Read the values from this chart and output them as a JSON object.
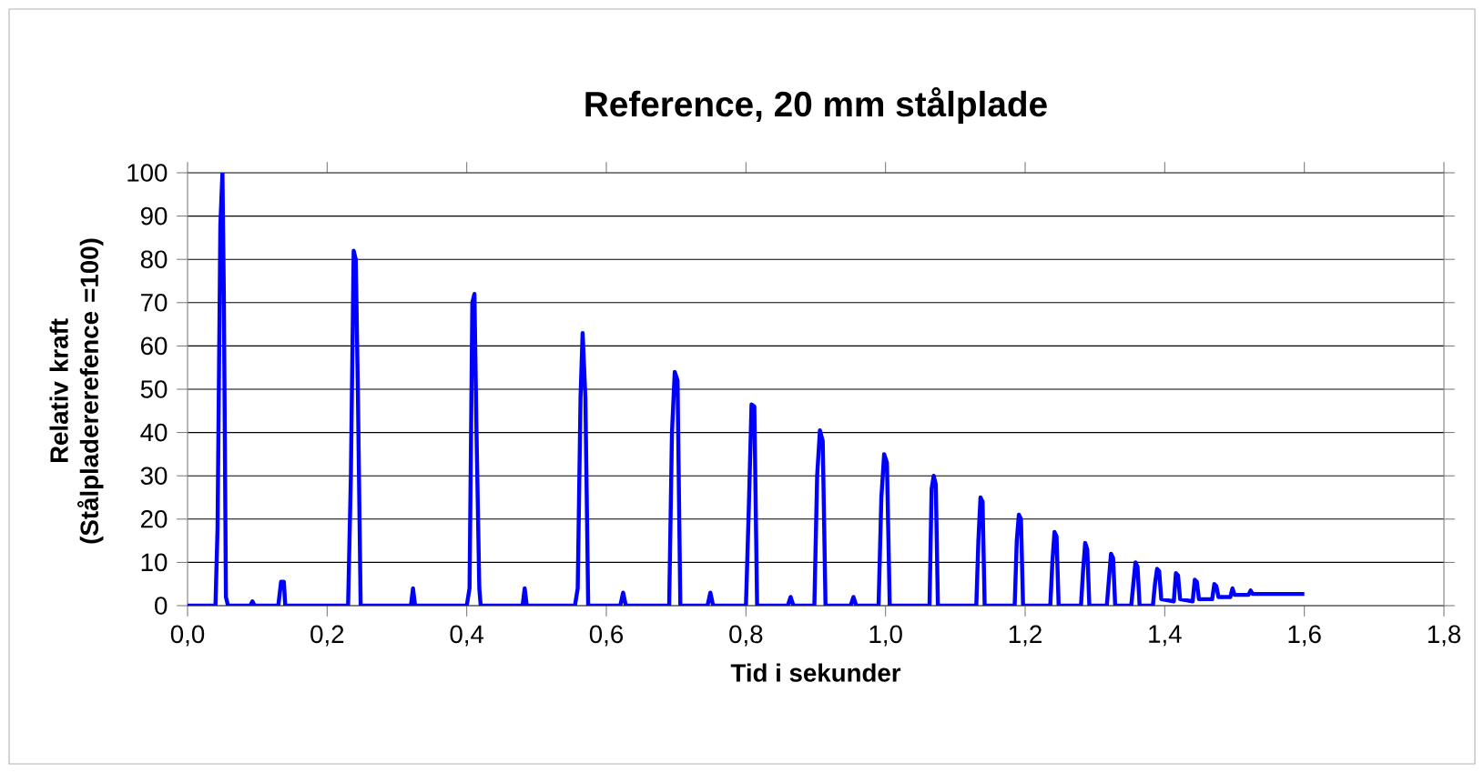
{
  "chart_data": {
    "type": "line",
    "title": "Reference, 20 mm stålplade",
    "xlabel": "Tid i sekunder",
    "ylabel": "Relativ kraft (Stålpladererefence =100)",
    "x": [
      0,
      0.04,
      0.043,
      0.047,
      0.05,
      0.052,
      0.055,
      0.058,
      0.09,
      0.093,
      0.096,
      0.13,
      0.134,
      0.138,
      0.14,
      0.23,
      0.234,
      0.238,
      0.241,
      0.244,
      0.248,
      0.27,
      0.32,
      0.323,
      0.326,
      0.4,
      0.404,
      0.408,
      0.411,
      0.414,
      0.418,
      0.42,
      0.48,
      0.483,
      0.486,
      0.555,
      0.559,
      0.563,
      0.566,
      0.57,
      0.574,
      0.62,
      0.624,
      0.628,
      0.69,
      0.694,
      0.698,
      0.702,
      0.706,
      0.745,
      0.749,
      0.753,
      0.8,
      0.804,
      0.808,
      0.812,
      0.816,
      0.86,
      0.864,
      0.868,
      0.898,
      0.902,
      0.906,
      0.91,
      0.914,
      0.95,
      0.954,
      0.958,
      0.99,
      0.994,
      0.998,
      1.002,
      1.006,
      1.063,
      1.066,
      1.069,
      1.072,
      1.075,
      1.13,
      1.133,
      1.136,
      1.139,
      1.142,
      1.185,
      1.188,
      1.191,
      1.194,
      1.197,
      1.236,
      1.239,
      1.242,
      1.245,
      1.248,
      1.28,
      1.283,
      1.286,
      1.289,
      1.292,
      1.317,
      1.32,
      1.323,
      1.326,
      1.329,
      1.352,
      1.355,
      1.358,
      1.361,
      1.364,
      1.383,
      1.386,
      1.389,
      1.392,
      1.395,
      1.413,
      1.416,
      1.419,
      1.422,
      1.44,
      1.443,
      1.446,
      1.449,
      1.468,
      1.471,
      1.474,
      1.477,
      1.494,
      1.497,
      1.5,
      1.52,
      1.523,
      1.526,
      1.54,
      1.6
    ],
    "values": [
      0,
      0,
      18,
      88,
      100,
      72,
      2,
      0,
      0,
      1,
      0,
      0,
      5.5,
      5.5,
      0,
      0,
      30,
      82,
      80,
      50,
      0,
      0,
      0,
      4,
      0,
      0,
      4,
      70,
      72,
      40,
      4,
      0,
      0,
      4,
      0,
      0,
      4,
      48,
      63,
      48,
      0,
      0,
      3,
      0,
      0,
      40,
      54,
      52,
      0,
      0,
      3,
      0,
      0,
      22,
      46.5,
      46,
      0,
      0,
      2,
      0,
      0,
      30,
      40.5,
      38,
      0,
      0,
      2,
      0,
      0,
      25,
      35,
      33,
      0,
      0,
      27,
      30,
      28,
      0,
      0,
      15,
      25,
      24,
      0,
      0,
      15,
      21,
      20,
      0,
      0,
      10,
      17,
      16,
      0,
      0,
      8,
      14.5,
      13,
      0,
      0,
      6,
      12,
      11,
      0,
      0,
      5,
      10,
      9,
      0,
      0,
      5,
      8.5,
      8,
      1.5,
      1,
      7.5,
      7,
      1.5,
      1,
      6,
      5.5,
      1.5,
      1.5,
      5,
      4.5,
      2,
      2,
      4,
      2.5,
      2.5,
      3.5,
      2.7,
      2.7,
      2.7
    ],
    "color": "#0000ff",
    "xlim": [
      0,
      1.8
    ],
    "ylim": [
      0,
      100
    ],
    "xticks": [
      {
        "value": 0,
        "label": "0,0"
      },
      {
        "value": 0.2,
        "label": "0,2"
      },
      {
        "value": 0.4,
        "label": "0,4"
      },
      {
        "value": 0.6,
        "label": "0,6"
      },
      {
        "value": 0.8,
        "label": "0,8"
      },
      {
        "value": 1.0,
        "label": "1,0"
      },
      {
        "value": 1.2,
        "label": "1,2"
      },
      {
        "value": 1.4,
        "label": "1,4"
      },
      {
        "value": 1.6,
        "label": "1,6"
      },
      {
        "value": 1.8,
        "label": "1,8"
      }
    ],
    "yticks": [
      0,
      10,
      20,
      30,
      40,
      50,
      60,
      70,
      80,
      90,
      100
    ],
    "grid": "y",
    "marker": "none",
    "line_style": "solid"
  }
}
